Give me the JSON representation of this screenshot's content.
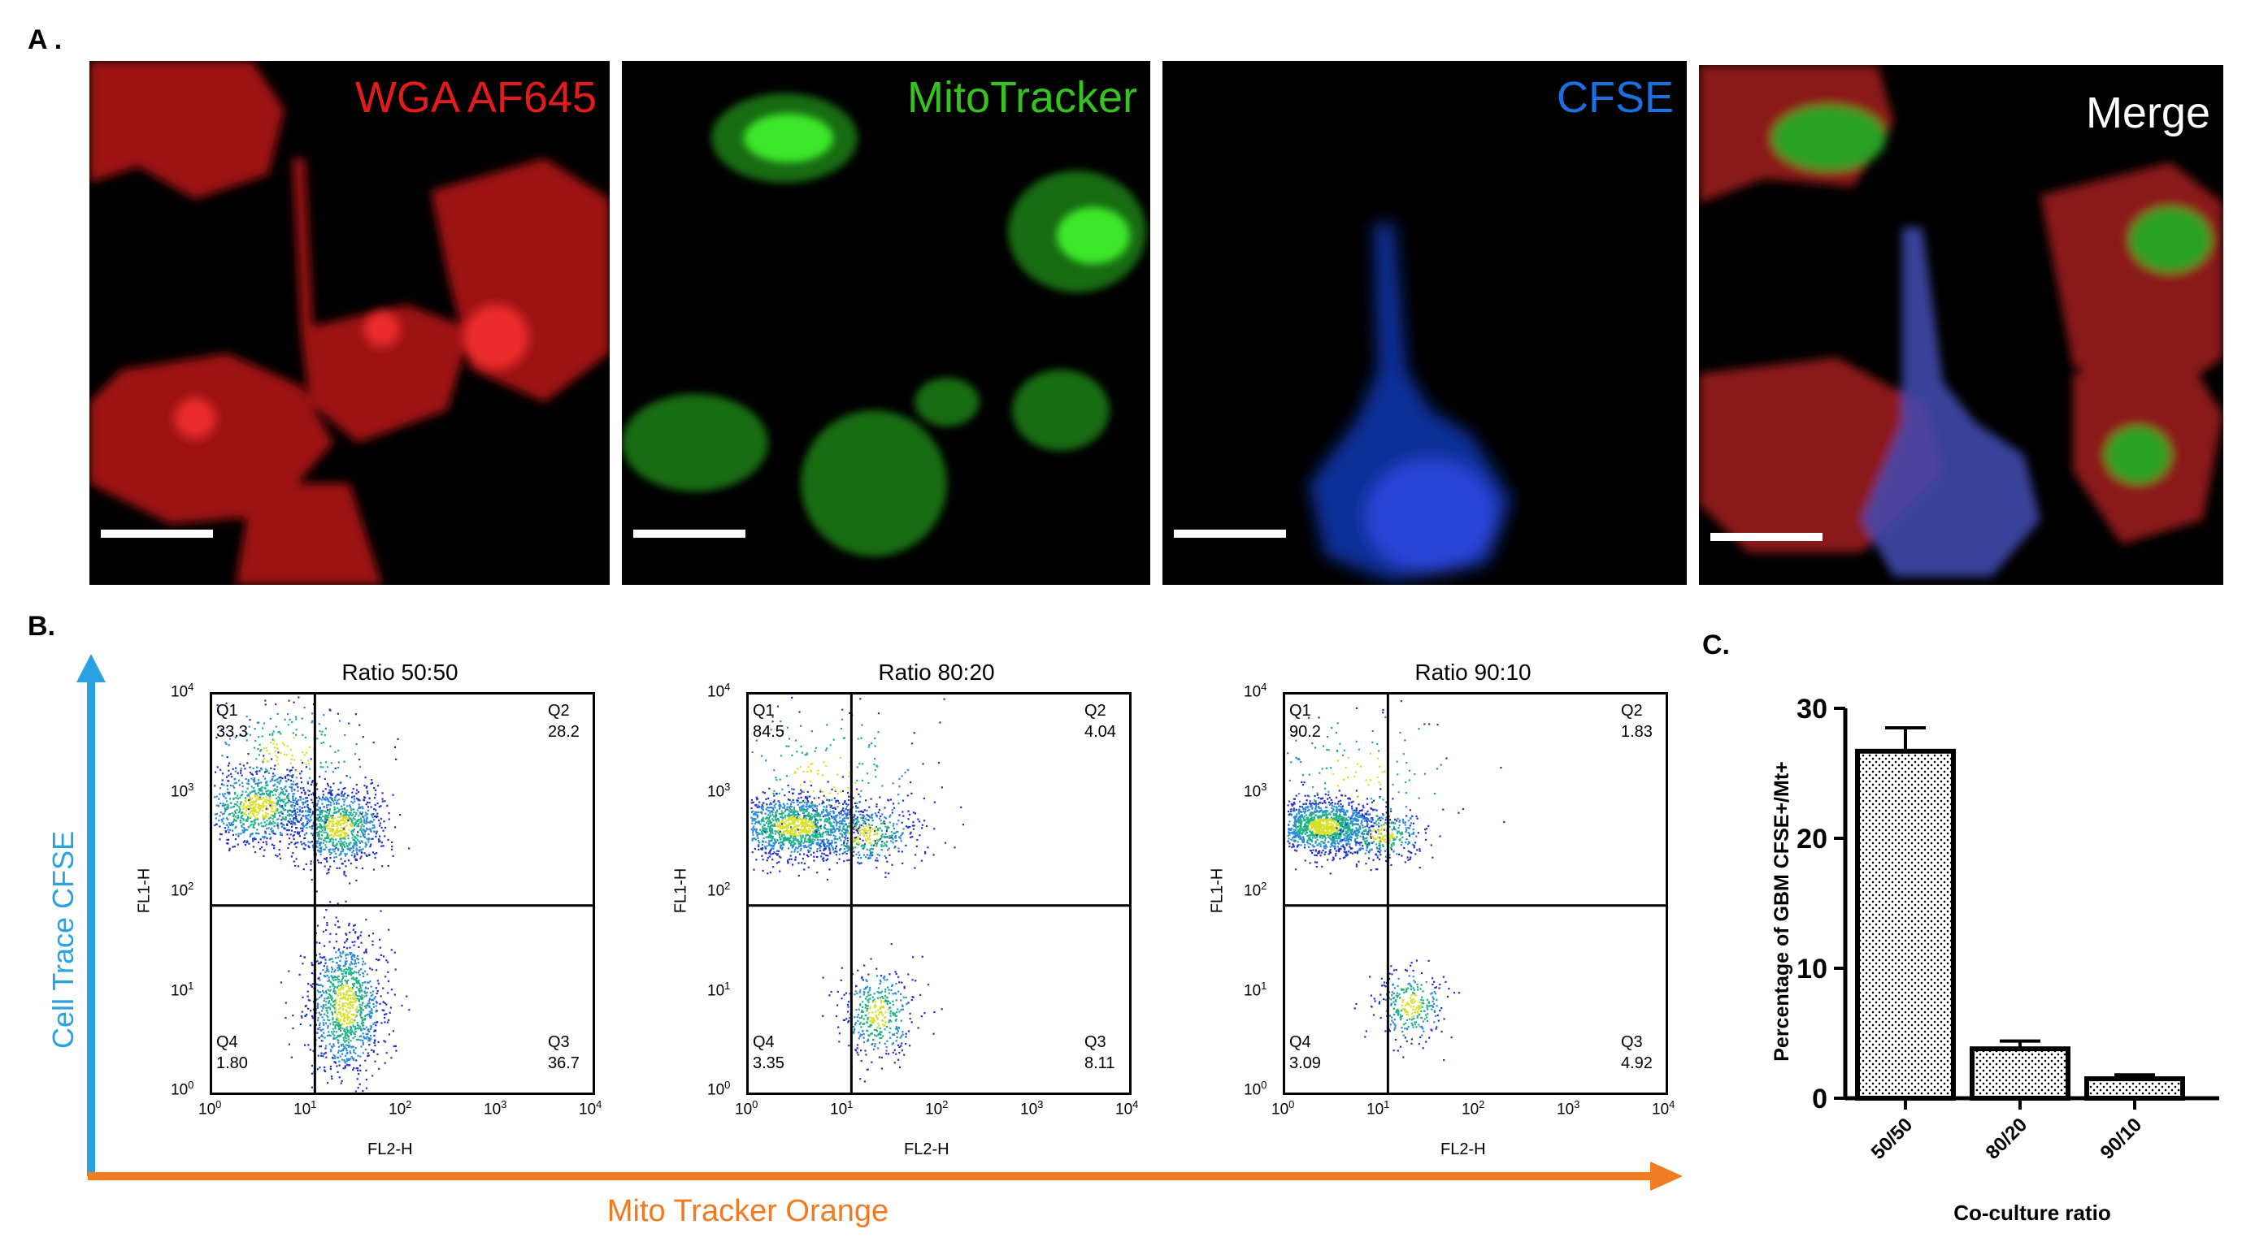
{
  "panel_a": {
    "letter": "A .",
    "images": [
      {
        "label": "WGA AF645",
        "label_color": "#e31b1b",
        "channel": "red"
      },
      {
        "label": "MitoTracker",
        "label_color": "#36c21f",
        "channel": "green"
      },
      {
        "label": "CFSE",
        "label_color": "#1c6fe0",
        "channel": "blue"
      },
      {
        "label": "Merge",
        "label_color": "#ffffff",
        "channel": "merge"
      }
    ]
  },
  "panel_b": {
    "letter": "B.",
    "y_axis_label": "Cell Trace CFSE",
    "x_axis_label": "Mito Tracker Orange",
    "y_axis_color": "#2aa1e0",
    "x_axis_color": "#f07b22",
    "plots": [
      {
        "title": "Ratio 50:50",
        "q1": "Q1",
        "q1_val": "33.3",
        "q2": "Q2",
        "q2_val": "28.2",
        "q3": "Q3",
        "q3_val": "36.7",
        "q4": "Q4",
        "q4_val": "1.80"
      },
      {
        "title": "Ratio 80:20",
        "q1": "Q1",
        "q1_val": "84.5",
        "q2": "Q2",
        "q2_val": "4.04",
        "q3": "Q3",
        "q3_val": "8.11",
        "q4": "Q4",
        "q4_val": "3.35"
      },
      {
        "title": "Ratio 90:10",
        "q1": "Q1",
        "q1_val": "90.2",
        "q2": "Q2",
        "q2_val": "1.83",
        "q3": "Q3",
        "q3_val": "4.92",
        "q4": "Q4",
        "q4_val": "3.09"
      }
    ],
    "facs_xlabel": "FL2-H",
    "facs_ylabel": "FL1-H",
    "tick_base": "10",
    "tick_exps": [
      "0",
      "1",
      "2",
      "3",
      "4"
    ]
  },
  "panel_c": {
    "letter": "C.",
    "chart_data": {
      "type": "bar",
      "categories": [
        "50/50",
        "80/20",
        "90/10"
      ],
      "values": [
        26.7,
        3.8,
        1.5
      ],
      "errors": [
        1.8,
        0.6,
        0.3
      ],
      "ylabel": "Percentage of GBM CFSE+/Mt+",
      "xlabel": "Co-culture ratio",
      "ylim": [
        0,
        30
      ],
      "yticks": [
        0,
        10,
        20,
        30
      ]
    }
  }
}
